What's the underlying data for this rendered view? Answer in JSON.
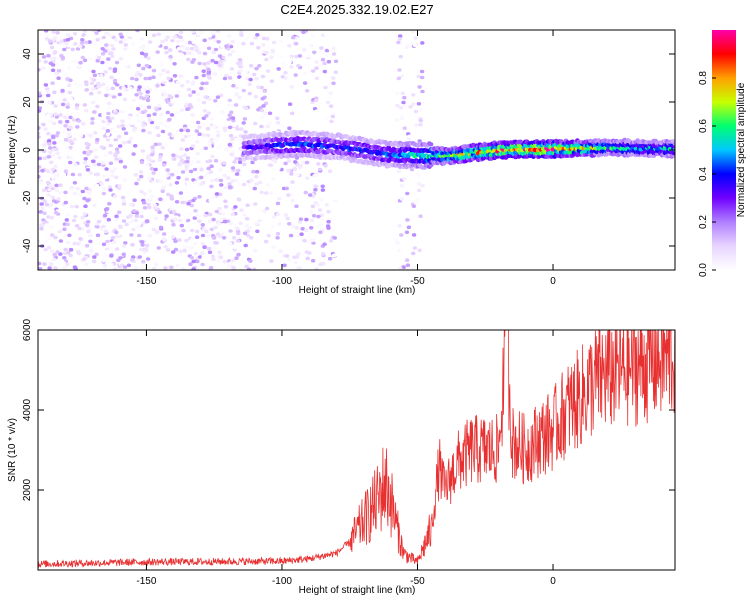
{
  "figure": {
    "title": "C2E4.2025.332.19.02.E27"
  },
  "chart_data": [
    {
      "type": "heatmap",
      "name": "spectrogram",
      "xlabel": "Height of straight line (km)",
      "ylabel": "Frequency (Hz)",
      "xlim": [
        -190,
        45
      ],
      "ylim": [
        -50,
        50
      ],
      "xticks": [
        -150,
        -100,
        -50,
        0
      ],
      "xtick_labels": [
        "-150",
        "-100",
        "-50",
        "0"
      ],
      "yticks": [
        -40,
        -20,
        0,
        20,
        40
      ],
      "ytick_labels": [
        "-40",
        "-20",
        "0",
        "20",
        "40"
      ],
      "grid": false,
      "colorbar": {
        "label": "Normalized spectral amplitude",
        "range": [
          0,
          1
        ],
        "ticks": [
          0.0,
          0.2,
          0.4,
          0.6,
          0.8
        ],
        "tick_labels": [
          "0.0",
          "0.2",
          "0.4",
          "0.6",
          "0.8"
        ],
        "colormap": [
          "#ffffff",
          "#e8d4ff",
          "#b080ff",
          "#7000ff",
          "#0000ff",
          "#00c8ff",
          "#00ff70",
          "#c8ff00",
          "#ffa000",
          "#ff0000",
          "#ff00aa"
        ]
      },
      "ridge": {
        "description_points": [
          {
            "x": -112,
            "freq": 1.0,
            "amp": 0.35
          },
          {
            "x": -95,
            "freq": 2.5,
            "amp": 0.45
          },
          {
            "x": -80,
            "freq": 1.5,
            "amp": 0.4
          },
          {
            "x": -60,
            "freq": -2.0,
            "amp": 0.45
          },
          {
            "x": -40,
            "freq": -2.5,
            "amp": 0.7
          },
          {
            "x": -20,
            "freq": 0.0,
            "amp": 0.9
          },
          {
            "x": 0,
            "freq": 0.5,
            "amp": 0.95
          },
          {
            "x": 20,
            "freq": 1.0,
            "amp": 0.6
          },
          {
            "x": 45,
            "freq": 0.5,
            "amp": 0.55
          }
        ]
      }
    },
    {
      "type": "line",
      "name": "snr",
      "xlabel": "Height of straight line (km)",
      "ylabel": "SNR (10 * v/v)",
      "xlim": [
        -190,
        45
      ],
      "ylim": [
        0,
        6000
      ],
      "xticks": [
        -150,
        -100,
        -50,
        0
      ],
      "xtick_labels": [
        "-150",
        "-100",
        "-50",
        "0"
      ],
      "yticks": [
        2000,
        4000,
        6000
      ],
      "ytick_labels": [
        "2000",
        "4000",
        "6000"
      ],
      "grid": false,
      "line_color": "#e83030",
      "series": [
        {
          "x": [
            -190,
            -150,
            -100,
            -90,
            -80,
            -75,
            -70,
            -65,
            -62,
            -60,
            -57,
            -55,
            -50,
            -45,
            -42,
            -40,
            -35,
            -30,
            -25,
            -20,
            -17,
            -15,
            -10,
            -5,
            0,
            5,
            10,
            15,
            20,
            25,
            30,
            35,
            40,
            45
          ],
          "values": [
            150,
            200,
            220,
            280,
            420,
            700,
            1200,
            1700,
            2200,
            1800,
            900,
            400,
            200,
            1000,
            2600,
            2000,
            2700,
            3000,
            3000,
            3000,
            6000,
            3200,
            3000,
            3300,
            3500,
            4000,
            4300,
            4700,
            4900,
            5000,
            5100,
            5200,
            5300,
            5350
          ]
        }
      ]
    }
  ]
}
